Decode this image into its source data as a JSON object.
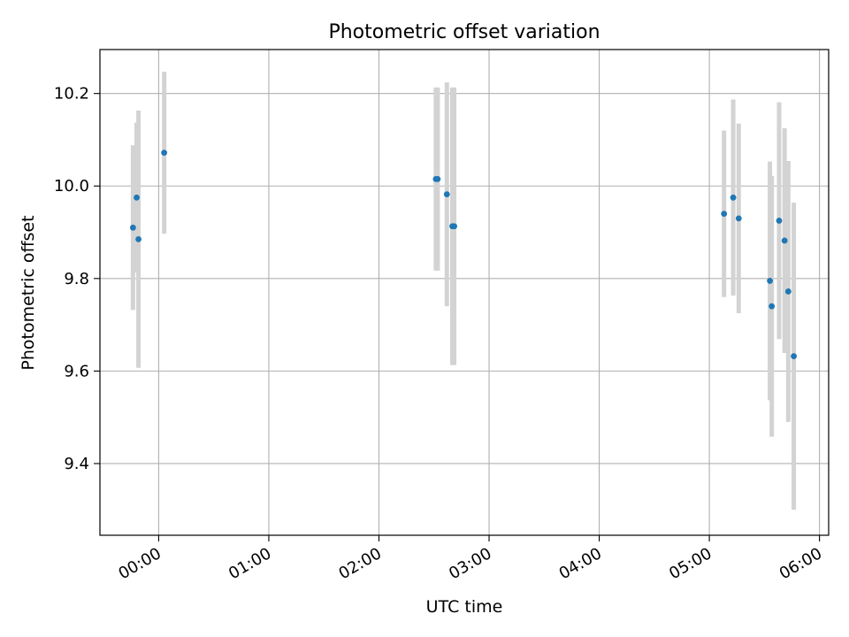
{
  "chart_data": {
    "type": "scatter",
    "title": "Photometric offset variation",
    "xlabel": "UTC time",
    "ylabel": "Photometric offset",
    "x_ticks": [
      "00:00",
      "01:00",
      "02:00",
      "03:00",
      "04:00",
      "05:00",
      "06:00"
    ],
    "y_ticks": [
      "9.4",
      "9.6",
      "9.8",
      "10.0",
      "10.2"
    ],
    "xlim": [
      "23:28",
      "06:05"
    ],
    "ylim": [
      9.245,
      10.295
    ],
    "grid": true,
    "series": [
      {
        "marker_color": "#1f77b4",
        "errorbar_color": "#d3d3d3",
        "points": [
          {
            "x": "23:46",
            "y": 9.91,
            "yerr": 0.178
          },
          {
            "x": "23:48",
            "y": 9.975,
            "yerr": 0.162
          },
          {
            "x": "23:49",
            "y": 9.885,
            "yerr": 0.278
          },
          {
            "x": "00:03",
            "y": 10.072,
            "yerr": 0.175
          },
          {
            "x": "02:31",
            "y": 10.015,
            "yerr": 0.198
          },
          {
            "x": "02:32",
            "y": 10.015,
            "yerr": 0.198
          },
          {
            "x": "02:37",
            "y": 9.982,
            "yerr": 0.242
          },
          {
            "x": "02:40",
            "y": 9.913,
            "yerr": 0.3
          },
          {
            "x": "02:41",
            "y": 9.913,
            "yerr": 0.3
          },
          {
            "x": "05:08",
            "y": 9.94,
            "yerr": 0.18
          },
          {
            "x": "05:13",
            "y": 9.975,
            "yerr": 0.212
          },
          {
            "x": "05:16",
            "y": 9.93,
            "yerr": 0.205
          },
          {
            "x": "05:33",
            "y": 9.795,
            "yerr": 0.258
          },
          {
            "x": "05:34",
            "y": 9.74,
            "yerr": 0.282
          },
          {
            "x": "05:38",
            "y": 9.925,
            "yerr": 0.256
          },
          {
            "x": "05:41",
            "y": 9.882,
            "yerr": 0.243
          },
          {
            "x": "05:43",
            "y": 9.772,
            "yerr": 0.282
          },
          {
            "x": "05:46",
            "y": 9.632,
            "yerr": 0.332
          }
        ]
      }
    ]
  }
}
